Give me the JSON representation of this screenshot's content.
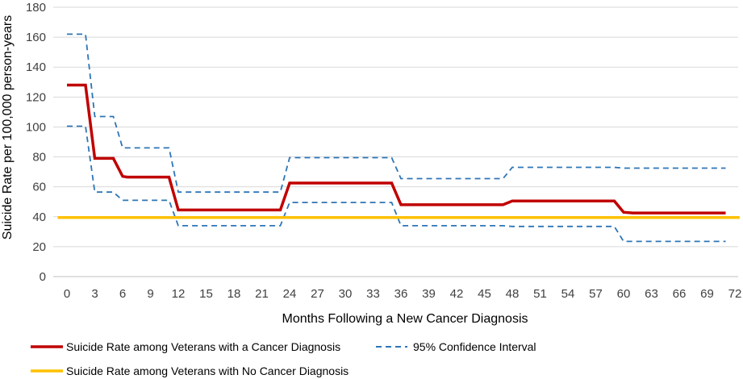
{
  "chart_data": {
    "type": "line",
    "xlabel": "Months  Following a New Cancer Diagnosis",
    "ylabel": "Suicide Rate per 100,000 person-years",
    "xlim": [
      0,
      72
    ],
    "ylim": [
      0,
      180
    ],
    "yticks": [
      0,
      20,
      40,
      60,
      80,
      100,
      120,
      140,
      160,
      180
    ],
    "xticks": [
      0,
      3,
      6,
      9,
      12,
      15,
      18,
      21,
      24,
      27,
      30,
      33,
      36,
      39,
      42,
      45,
      48,
      51,
      54,
      57,
      60,
      63,
      66,
      69,
      72
    ],
    "grid": "horizontal",
    "legend_position": "bottom",
    "series": [
      {
        "name": "Suicide Rate among Veterans with a Cancer Diagnosis",
        "color": "#C00000",
        "style": "solid",
        "points": [
          [
            0,
            128
          ],
          [
            2,
            128
          ],
          [
            3,
            79
          ],
          [
            5,
            79
          ],
          [
            6,
            67
          ],
          [
            6.5,
            66.5
          ],
          [
            11,
            66.5
          ],
          [
            12,
            44.5
          ],
          [
            23,
            44.5
          ],
          [
            24,
            62.5
          ],
          [
            35,
            62.5
          ],
          [
            36,
            48
          ],
          [
            47,
            48
          ],
          [
            48,
            50.5
          ],
          [
            59,
            50.5
          ],
          [
            60,
            43
          ],
          [
            61,
            42.5
          ],
          [
            71,
            42.5
          ]
        ]
      },
      {
        "name": "95% Confidence Interval",
        "color": "#2E75B6",
        "style": "dashed",
        "points": [
          [
            0,
            162
          ],
          [
            2,
            162
          ],
          [
            3,
            107
          ],
          [
            5,
            107
          ],
          [
            6,
            86
          ],
          [
            11,
            86
          ],
          [
            12,
            56.5
          ],
          [
            23,
            56.5
          ],
          [
            24,
            79.5
          ],
          [
            35,
            79.5
          ],
          [
            36,
            65.5
          ],
          [
            47,
            65.5
          ],
          [
            48,
            73
          ],
          [
            59,
            73
          ],
          [
            60,
            72.5
          ],
          [
            71,
            72.5
          ]
        ]
      },
      {
        "name": "95% Confidence Interval (lower)",
        "legend": false,
        "color": "#2E75B6",
        "style": "dashed",
        "points": [
          [
            0,
            100.5
          ],
          [
            2,
            100.5
          ],
          [
            3,
            56.5
          ],
          [
            5,
            56.5
          ],
          [
            6,
            51
          ],
          [
            11,
            51
          ],
          [
            12,
            34
          ],
          [
            23,
            34
          ],
          [
            24,
            49.5
          ],
          [
            35,
            49.5
          ],
          [
            36,
            34
          ],
          [
            47,
            34
          ],
          [
            48,
            33.5
          ],
          [
            59,
            33.5
          ],
          [
            60,
            23.5
          ],
          [
            71,
            23.5
          ]
        ]
      },
      {
        "name": "Suicide Rate among Veterans with No Cancer Diagnosis",
        "color": "#FFC000",
        "style": "solid",
        "points": [
          [
            -1,
            39.5
          ],
          [
            72.5,
            39.5
          ]
        ]
      }
    ],
    "legend": [
      "Suicide Rate among Veterans with a Cancer Diagnosis",
      "95% Confidence Interval",
      "Suicide Rate among Veterans with No Cancer Diagnosis"
    ]
  }
}
